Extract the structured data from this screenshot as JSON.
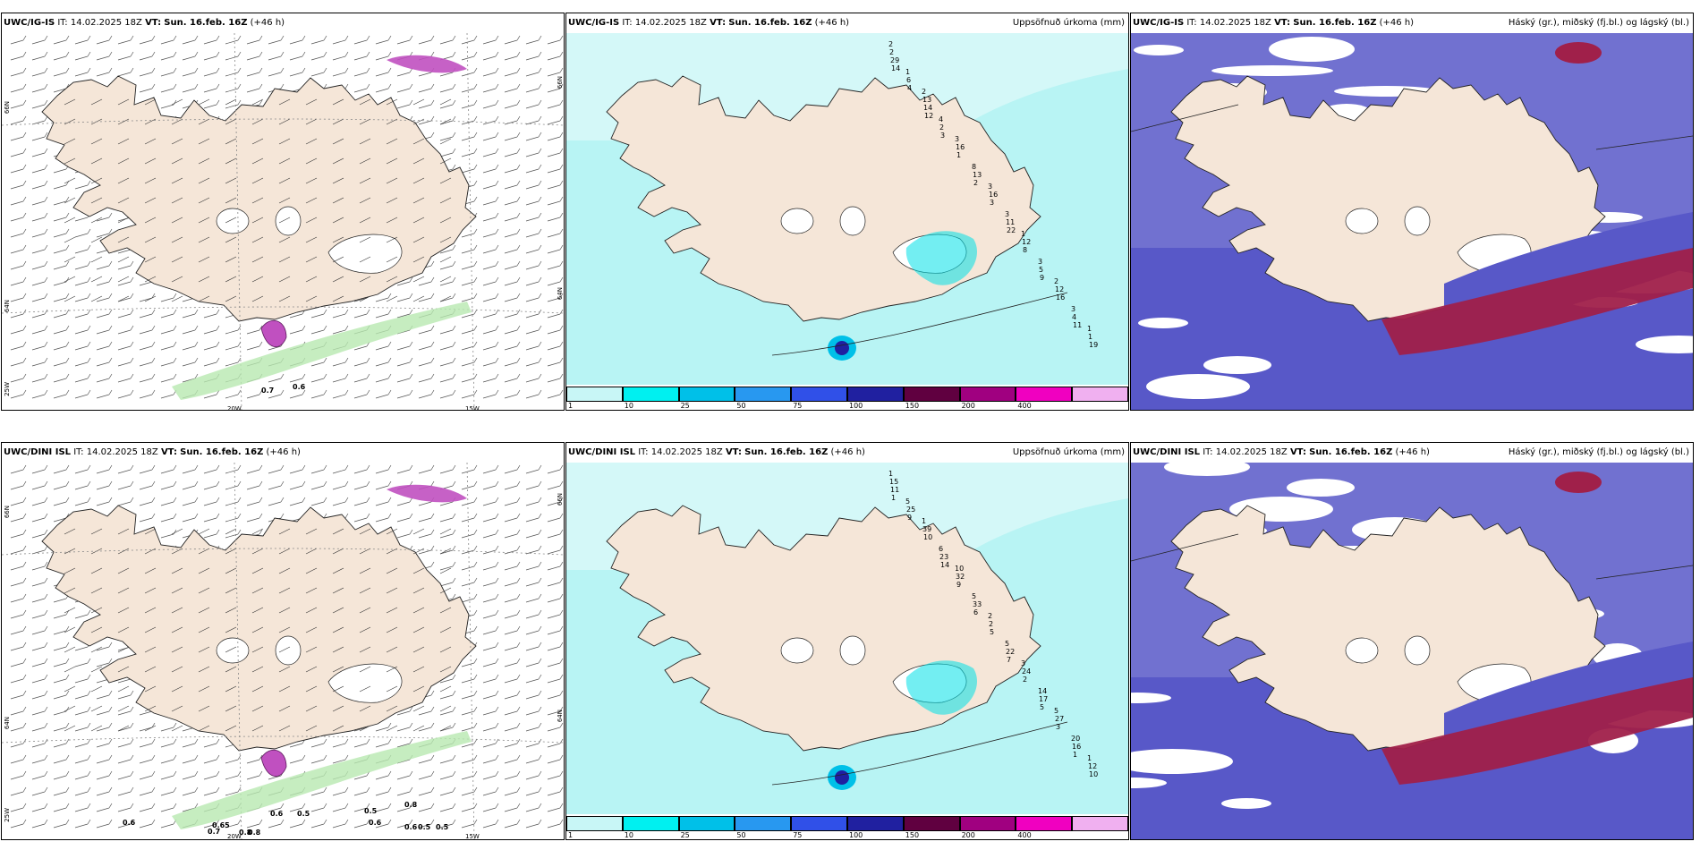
{
  "panels": [
    {
      "model": "UWC/IG-IS",
      "it": "IT: 14.02.2025 18Z",
      "vt_label": "VT:",
      "vt": "Sun. 16.feb. 16Z",
      "lead": "(+46 h)",
      "right": "",
      "kind": "wind"
    },
    {
      "model": "UWC/IG-IS",
      "it": "IT: 14.02.2025 18Z",
      "vt_label": "VT:",
      "vt": "Sun. 16.feb. 16Z",
      "lead": "(+46 h)",
      "right": "Uppsöfnuð úrkoma (mm)",
      "kind": "precip"
    },
    {
      "model": "UWC/IG-IS",
      "it": "IT: 14.02.2025 18Z",
      "vt_label": "VT:",
      "vt": "Sun. 16.feb. 16Z",
      "lead": "(+46 h)",
      "right": "Háský (gr.), miðský (fj.bl.) og lágský (bl.)",
      "kind": "cloud"
    },
    {
      "model": "UWC/DINI ISL",
      "it": "IT: 14.02.2025 18Z",
      "vt_label": "VT:",
      "vt": "Sun. 16.feb. 16Z",
      "lead": "(+46 h)",
      "right": "",
      "kind": "wind"
    },
    {
      "model": "UWC/DINI ISL",
      "it": "IT: 14.02.2025 18Z",
      "vt_label": "VT:",
      "vt": "Sun. 16.feb. 16Z",
      "lead": "(+46 h)",
      "right": "Uppsöfnuð úrkoma (mm)",
      "kind": "precip"
    },
    {
      "model": "UWC/DINI ISL",
      "it": "IT: 14.02.2025 18Z",
      "vt_label": "VT:",
      "vt": "Sun. 16.feb. 16Z",
      "lead": "(+46 h)",
      "right": "Háský (gr.), miðský (fj.bl.) og lágský (bl.)",
      "kind": "cloud"
    }
  ],
  "axis_labels": {
    "lat66": "66N",
    "lat64": "64N",
    "lon20": "20W",
    "lon15": "15W",
    "lon25": "25W"
  },
  "legend": {
    "ticks": [
      "1",
      "10",
      "25",
      "50",
      "75",
      "100",
      "150",
      "200",
      "400"
    ],
    "colors": [
      "#c8f6f6",
      "#00f0f0",
      "#00c0e8",
      "#2898f0",
      "#3050e8",
      "#2020a0",
      "#600040",
      "#a00080",
      "#f000c0",
      "#f0b0f0"
    ]
  },
  "colors": {
    "land": "#f5e6d8",
    "precip_light": "#b8f4f4",
    "cloud_blue": "#5858c8",
    "cloud_dark": "#2a2aa0",
    "cloud_red": "#a0204a",
    "green": "#b8e8b0",
    "magenta": "#c050c0"
  },
  "precip_labels_top": [
    "2",
    "2",
    "3",
    "3",
    "1",
    "2",
    "1",
    "1",
    "4",
    "8",
    "3",
    "3",
    "3",
    "2",
    "13",
    "16",
    "16",
    "12",
    "12",
    "1",
    "6",
    "2",
    "13",
    "11",
    "5",
    "4",
    "29",
    "14",
    "1",
    "3",
    "8",
    "16",
    "19",
    "4",
    "3",
    "2",
    "22",
    "9",
    "11",
    "14",
    "12"
  ],
  "precip_labels_bottom": [
    "1",
    "1",
    "10",
    "2",
    "3",
    "5",
    "1",
    "5",
    "6",
    "5",
    "5",
    "14",
    "20",
    "15",
    "39",
    "32",
    "2",
    "24",
    "27",
    "12",
    "25",
    "23",
    "33",
    "22",
    "17",
    "16",
    "11",
    "10",
    "9",
    "5",
    "2",
    "3",
    "10",
    "9",
    "14",
    "6",
    "7",
    "5",
    "1",
    "1"
  ],
  "wind_labels_top": [
    "0.7",
    "0.6"
  ],
  "wind_labels_bottom": [
    "0.6",
    "0.65",
    "0.7",
    "0.8",
    "0.8",
    "0.5",
    "0.6",
    "0.6",
    "0.5",
    "0.6",
    "0.5",
    "0.5",
    "0.8"
  ]
}
